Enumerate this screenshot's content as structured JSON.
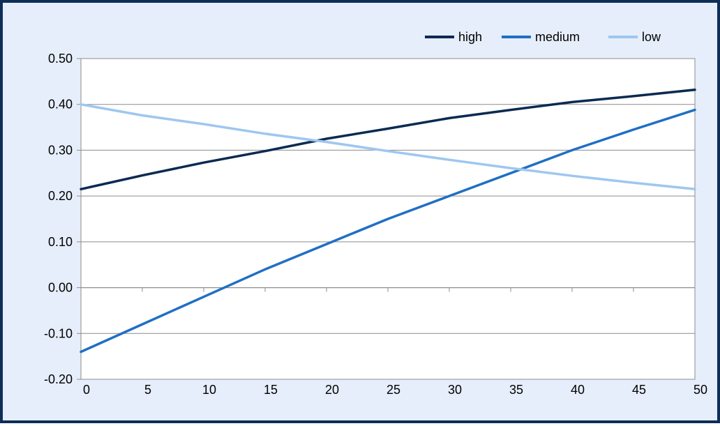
{
  "chart_data": {
    "type": "line",
    "title": "",
    "xlabel": "",
    "ylabel": "",
    "xlim": [
      0,
      50
    ],
    "ylim": [
      -0.2,
      0.5
    ],
    "x_ticks": [
      "0",
      "5",
      "10",
      "15",
      "20",
      "25",
      "30",
      "35",
      "40",
      "45",
      "50"
    ],
    "y_ticks": [
      "-0.20",
      "-0.10",
      "0.00",
      "0.10",
      "0.20",
      "0.30",
      "0.40",
      "0.50"
    ],
    "grid": "horizontal",
    "legend_position": "top-right",
    "x": [
      0,
      5,
      10,
      15,
      20,
      25,
      30,
      35,
      40,
      45,
      50
    ],
    "series": [
      {
        "name": "high",
        "color": "#0b2a52",
        "values": [
          0.215,
          0.245,
          0.273,
          0.298,
          0.325,
          0.347,
          0.37,
          0.388,
          0.405,
          0.418,
          0.432
        ]
      },
      {
        "name": "medium",
        "color": "#1f6fc4",
        "values": [
          -0.14,
          -0.08,
          -0.02,
          0.04,
          0.095,
          0.15,
          0.2,
          0.25,
          0.3,
          0.345,
          0.388
        ]
      },
      {
        "name": "low",
        "color": "#9ec7ef",
        "values": [
          0.4,
          0.376,
          0.357,
          0.336,
          0.318,
          0.298,
          0.279,
          0.261,
          0.244,
          0.229,
          0.215
        ]
      }
    ]
  }
}
